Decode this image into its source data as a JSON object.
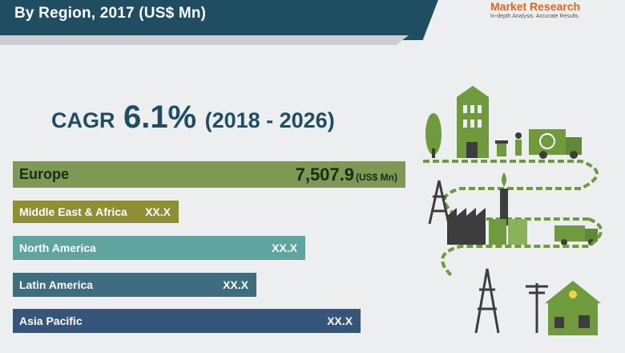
{
  "header": {
    "subtitle": "By Region, 2017 (US$ Mn)",
    "brand_name": "Market Research",
    "brand_tagline": "In-depth Analysis. Accurate Results"
  },
  "cagr": {
    "label": "CAGR",
    "value": "6.1%",
    "period": "(2018 - 2026)"
  },
  "colors": {
    "banner": "#1f4e63",
    "text_dark": "#1f4e63",
    "illustration_green": "#6f9a3e"
  },
  "chart_data": {
    "type": "bar",
    "orientation": "horizontal",
    "title": "By Region, 2017 (US$ Mn)",
    "unit": "(US$ Mn)",
    "categories": [
      "Europe",
      "Middle East & Africa",
      "North America",
      "Latin America",
      "Asia Pacific"
    ],
    "value_labels": [
      "7,507.9",
      "XX.X",
      "XX.X",
      "XX.X",
      "XX.X"
    ],
    "values": [
      7507.9,
      null,
      null,
      null,
      null
    ],
    "relative_length": [
      1.0,
      0.423,
      0.745,
      0.62,
      0.885
    ],
    "colors": [
      "#7d9a54",
      "#8e8f35",
      "#5fa49f",
      "#3e6d80",
      "#36557a"
    ]
  }
}
